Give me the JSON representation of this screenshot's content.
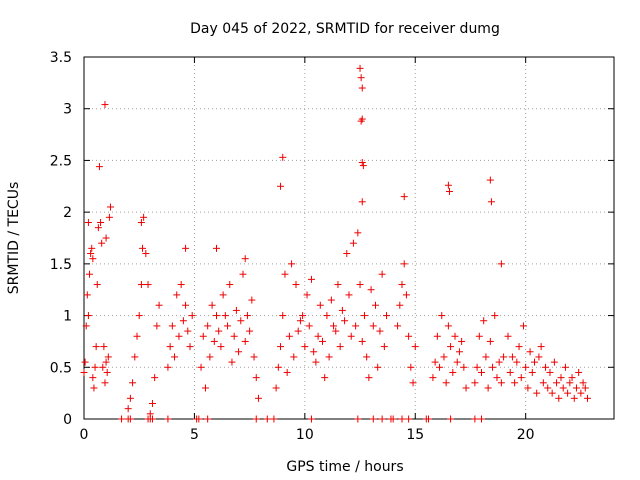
{
  "chart_data": {
    "type": "scatter",
    "title": "Day 045 of 2022, SRMTID for receiver dumg",
    "xlabel": "GPS time / hours",
    "ylabel": "SRMTID / TECUs",
    "xlim": [
      0,
      24
    ],
    "ylim": [
      0,
      3.5
    ],
    "xticks": [
      0,
      5,
      10,
      15,
      20
    ],
    "yticks": [
      0,
      0.5,
      1,
      1.5,
      2,
      2.5,
      3,
      3.5
    ],
    "xtick_labels": [
      "0",
      "5",
      "10",
      "15",
      "20"
    ],
    "ytick_labels": [
      "0",
      "0.5",
      "1",
      "1.5",
      "2",
      "2.5",
      "3",
      "3.5"
    ],
    "grid": true,
    "marker": "plus",
    "color": "#ee0000",
    "series": [
      {
        "x": [
          0.0,
          0.05,
          0.1,
          0.15,
          0.2,
          0.25,
          0.3,
          0.35,
          0.4,
          0.45,
          0.5,
          0.55,
          0.6,
          0.65,
          0.7,
          0.75,
          0.8,
          0.85,
          0.9,
          0.95,
          1.0,
          1.05,
          1.1,
          1.15,
          1.2,
          0.95,
          1.0,
          0.2,
          0.4,
          2.0,
          2.1,
          2.2,
          2.3,
          2.4,
          2.5,
          2.6,
          2.7,
          2.8,
          2.9,
          3.0,
          3.1,
          3.2,
          3.3,
          3.4,
          2.6,
          2.65,
          3.8,
          3.9,
          4.0,
          4.1,
          4.2,
          4.3,
          4.4,
          4.5,
          4.6,
          4.7,
          4.8,
          4.9,
          4.6,
          5.3,
          5.4,
          5.5,
          5.6,
          5.7,
          5.8,
          5.9,
          6.0,
          6.1,
          6.2,
          6.3,
          6.4,
          6.5,
          6.6,
          6.7,
          6.8,
          6.9,
          7.0,
          7.1,
          7.2,
          7.3,
          7.4,
          7.5,
          7.6,
          7.7,
          7.8,
          7.9,
          6.0,
          7.3,
          8.7,
          8.8,
          8.9,
          9.0,
          9.1,
          9.2,
          9.3,
          9.4,
          9.5,
          9.6,
          9.7,
          9.8,
          9.9,
          10.0,
          10.1,
          10.2,
          10.3,
          10.4,
          10.5,
          10.6,
          10.7,
          10.8,
          10.9,
          11.0,
          11.1,
          11.2,
          11.3,
          11.4,
          11.5,
          11.6,
          11.7,
          11.8,
          11.9,
          12.0,
          12.1,
          12.2,
          12.3,
          12.4,
          12.5,
          12.6,
          12.7,
          12.8,
          12.9,
          13.0,
          13.1,
          13.2,
          13.3,
          13.4,
          13.5,
          13.6,
          13.7,
          9.0,
          8.9,
          12.5,
          12.55,
          12.6,
          12.6,
          12.55,
          12.6,
          12.65,
          12.6,
          14.2,
          14.3,
          14.4,
          14.5,
          14.6,
          14.7,
          14.8,
          14.9,
          15.0,
          14.5,
          15.8,
          15.9,
          16.0,
          16.1,
          16.2,
          16.3,
          16.4,
          16.5,
          16.6,
          16.7,
          16.8,
          16.9,
          17.0,
          17.1,
          17.2,
          17.3,
          16.5,
          16.55,
          17.7,
          17.8,
          17.9,
          18.0,
          18.1,
          18.2,
          18.3,
          18.4,
          18.5,
          18.6,
          18.7,
          18.8,
          18.9,
          19.0,
          18.4,
          18.45,
          18.9,
          19.2,
          19.3,
          19.4,
          19.5,
          19.6,
          19.7,
          19.8,
          19.9,
          20.0,
          20.1,
          20.2,
          20.3,
          20.4,
          20.5,
          20.6,
          20.7,
          20.8,
          20.9,
          21.0,
          21.1,
          21.2,
          21.3,
          21.4,
          21.5,
          21.6,
          21.7,
          21.8,
          21.9,
          22.0,
          22.1,
          22.2,
          22.3,
          22.4,
          22.5,
          22.6,
          22.7,
          22.8,
          1.7,
          2.0,
          2.1,
          2.9,
          3.0,
          3.1,
          3.8,
          5.1,
          5.2,
          5.6,
          7.8,
          8.3,
          8.6,
          10.3,
          12.4,
          13.1,
          13.5,
          13.9,
          14.0,
          14.4,
          14.7,
          15.5,
          15.6,
          16.6,
          17.7,
          18.0
        ],
        "y": [
          0.45,
          0.55,
          0.9,
          1.2,
          1.0,
          1.4,
          1.6,
          1.65,
          0.4,
          0.3,
          0.5,
          0.7,
          1.3,
          1.85,
          2.44,
          1.9,
          1.7,
          0.5,
          0.7,
          0.35,
          0.55,
          0.45,
          0.6,
          1.95,
          2.05,
          3.04,
          1.75,
          1.9,
          1.55,
          0.1,
          0.2,
          0.35,
          0.6,
          0.8,
          1.0,
          1.3,
          1.95,
          1.6,
          1.3,
          0.05,
          0.15,
          0.4,
          0.9,
          1.1,
          1.9,
          1.65,
          0.5,
          0.7,
          0.9,
          0.6,
          1.2,
          0.8,
          1.3,
          0.95,
          1.1,
          0.85,
          0.7,
          1.0,
          1.65,
          0.5,
          0.8,
          0.3,
          0.9,
          0.6,
          1.1,
          0.75,
          1.0,
          0.85,
          0.7,
          1.2,
          1.0,
          0.9,
          1.3,
          0.55,
          0.8,
          1.05,
          0.65,
          0.95,
          1.4,
          0.75,
          1.0,
          0.85,
          1.15,
          0.6,
          0.4,
          0.2,
          1.65,
          1.55,
          0.3,
          0.5,
          0.7,
          1.0,
          1.4,
          0.45,
          0.8,
          1.5,
          0.6,
          1.3,
          0.85,
          0.95,
          1.0,
          0.7,
          1.2,
          0.9,
          1.35,
          0.65,
          0.55,
          0.8,
          1.1,
          0.75,
          0.4,
          1.0,
          0.6,
          1.15,
          0.9,
          0.85,
          1.3,
          0.7,
          1.05,
          0.95,
          1.6,
          1.2,
          0.8,
          1.7,
          0.9,
          1.8,
          1.3,
          0.75,
          1.0,
          0.6,
          0.4,
          1.25,
          0.9,
          1.1,
          0.5,
          0.85,
          1.4,
          0.7,
          1.0,
          2.53,
          2.25,
          3.39,
          3.3,
          3.2,
          2.9,
          2.88,
          2.48,
          2.45,
          2.1,
          0.9,
          1.1,
          1.3,
          1.5,
          1.2,
          0.8,
          0.5,
          0.35,
          0.7,
          2.15,
          0.4,
          0.55,
          0.8,
          0.5,
          1.0,
          0.6,
          0.35,
          0.9,
          0.7,
          0.45,
          0.8,
          0.55,
          0.65,
          0.75,
          0.5,
          0.3,
          2.26,
          2.2,
          0.35,
          0.5,
          0.8,
          0.45,
          0.95,
          0.6,
          0.3,
          0.75,
          0.5,
          1.0,
          0.4,
          0.55,
          0.35,
          0.6,
          2.31,
          2.1,
          1.5,
          0.8,
          0.45,
          0.6,
          0.35,
          0.55,
          0.7,
          0.4,
          0.9,
          0.5,
          0.3,
          0.65,
          0.45,
          0.55,
          0.25,
          0.6,
          0.7,
          0.35,
          0.5,
          0.3,
          0.45,
          0.25,
          0.55,
          0.35,
          0.2,
          0.4,
          0.3,
          0.5,
          0.25,
          0.35,
          0.4,
          0.2,
          0.3,
          0.45,
          0.25,
          0.35,
          0.3,
          0.2,
          0.0,
          0.0,
          0.0,
          0.0,
          0.0,
          0.0,
          0.0,
          0.0,
          0.0,
          0.0,
          0.0,
          0.0,
          0.0,
          0.0,
          0.0,
          0.0,
          0.0,
          0.0,
          0.0,
          0.0,
          0.0,
          0.0,
          0.0,
          0.0,
          0.0,
          0.0
        ]
      }
    ]
  }
}
